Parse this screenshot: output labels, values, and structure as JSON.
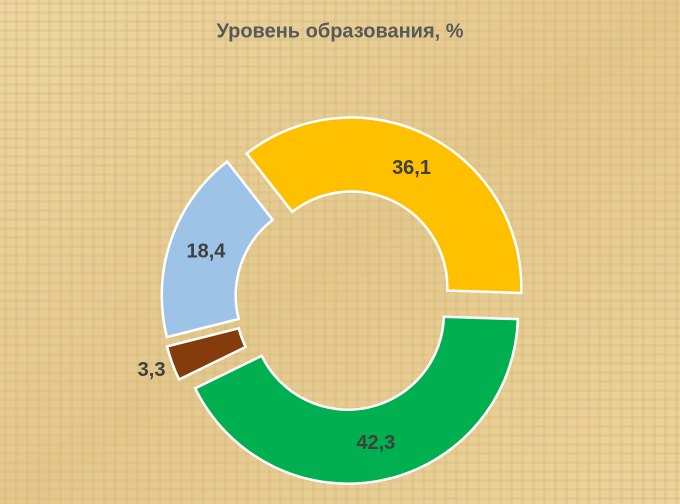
{
  "chart_data": {
    "type": "donut",
    "title": "Уровень образования, %",
    "values": [
      36.1,
      42.3,
      3.3,
      18.4
    ],
    "value_labels": [
      "36,1",
      "42,3",
      "3,3",
      "18,4"
    ],
    "colors": [
      "#ffc000",
      "#00b050",
      "#843c0c",
      "#9dc3e6"
    ]
  }
}
